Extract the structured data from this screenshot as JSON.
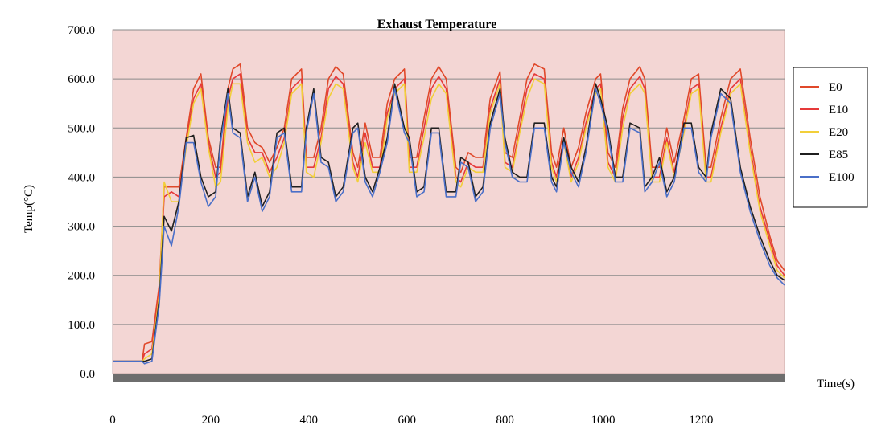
{
  "chart_data": {
    "type": "line",
    "title": "Exhaust Temperature",
    "xlabel": "Time(s)",
    "ylabel": "Temp(°C)",
    "xlim": [
      0,
      1370
    ],
    "ylim": [
      0,
      700
    ],
    "yticks": [
      "0.0",
      "100.0",
      "200.0",
      "300.0",
      "400.0",
      "500.0",
      "600.0",
      "700.0"
    ],
    "xticks": [
      "0",
      "200",
      "400",
      "600",
      "800",
      "1000",
      "1200"
    ],
    "grid": true,
    "legend_position": "right",
    "series": [
      {
        "name": "E0",
        "color": "#e0482a",
        "x": [
          0,
          60,
          65,
          80,
          95,
          105,
          120,
          135,
          150,
          165,
          180,
          195,
          210,
          220,
          235,
          245,
          260,
          275,
          290,
          305,
          320,
          335,
          350,
          365,
          385,
          395,
          410,
          425,
          440,
          455,
          470,
          490,
          500,
          515,
          530,
          545,
          560,
          575,
          595,
          605,
          620,
          635,
          650,
          665,
          680,
          700,
          710,
          725,
          740,
          755,
          770,
          790,
          800,
          815,
          830,
          845,
          860,
          880,
          895,
          905,
          920,
          935,
          950,
          965,
          985,
          995,
          1010,
          1025,
          1040,
          1055,
          1075,
          1085,
          1100,
          1115,
          1130,
          1145,
          1165,
          1180,
          1195,
          1210,
          1220,
          1240,
          1260,
          1280,
          1300,
          1320,
          1340,
          1355,
          1370
        ],
        "y": [
          25,
          25,
          60,
          65,
          180,
          380,
          380,
          380,
          480,
          580,
          610,
          480,
          420,
          420,
          580,
          620,
          630,
          500,
          470,
          460,
          430,
          460,
          500,
          600,
          620,
          440,
          440,
          500,
          600,
          625,
          610,
          450,
          420,
          510,
          440,
          440,
          550,
          600,
          620,
          440,
          440,
          520,
          600,
          625,
          600,
          420,
          410,
          450,
          440,
          440,
          560,
          615,
          450,
          440,
          520,
          600,
          630,
          620,
          450,
          420,
          500,
          420,
          460,
          530,
          600,
          610,
          450,
          420,
          540,
          600,
          625,
          600,
          420,
          420,
          500,
          430,
          520,
          600,
          610,
          420,
          420,
          520,
          600,
          620,
          480,
          360,
          280,
          230,
          210
        ]
      },
      {
        "name": "E10",
        "color": "#e63a3a",
        "x": [
          0,
          60,
          65,
          80,
          95,
          105,
          120,
          135,
          150,
          165,
          180,
          195,
          210,
          220,
          235,
          245,
          260,
          275,
          290,
          305,
          320,
          335,
          350,
          365,
          385,
          395,
          410,
          425,
          440,
          455,
          470,
          490,
          500,
          515,
          530,
          545,
          560,
          575,
          595,
          605,
          620,
          635,
          650,
          665,
          680,
          700,
          710,
          725,
          740,
          755,
          770,
          790,
          800,
          815,
          830,
          845,
          860,
          880,
          895,
          905,
          920,
          935,
          950,
          965,
          985,
          995,
          1010,
          1025,
          1040,
          1055,
          1075,
          1085,
          1100,
          1115,
          1130,
          1145,
          1165,
          1180,
          1195,
          1210,
          1220,
          1240,
          1260,
          1280,
          1300,
          1320,
          1340,
          1355,
          1370
        ],
        "y": [
          25,
          25,
          40,
          50,
          170,
          360,
          370,
          360,
          470,
          560,
          590,
          470,
          400,
          410,
          560,
          600,
          610,
          480,
          450,
          450,
          410,
          440,
          480,
          580,
          600,
          420,
          420,
          480,
          580,
          605,
          590,
          430,
          400,
          490,
          420,
          420,
          530,
          580,
          600,
          420,
          420,
          500,
          580,
          605,
          580,
          400,
          390,
          430,
          420,
          420,
          540,
          600,
          430,
          420,
          500,
          580,
          610,
          600,
          430,
          400,
          480,
          400,
          440,
          510,
          580,
          590,
          430,
          400,
          520,
          580,
          605,
          580,
          400,
          400,
          480,
          410,
          500,
          580,
          590,
          400,
          400,
          500,
          580,
          600,
          460,
          340,
          270,
          220,
          200
        ]
      },
      {
        "name": "E20",
        "color": "#f2cf3a",
        "x": [
          0,
          60,
          65,
          80,
          95,
          105,
          120,
          135,
          150,
          165,
          180,
          195,
          210,
          220,
          235,
          245,
          260,
          275,
          290,
          305,
          320,
          335,
          350,
          365,
          385,
          395,
          410,
          425,
          440,
          455,
          470,
          490,
          500,
          515,
          530,
          545,
          560,
          575,
          595,
          605,
          620,
          635,
          650,
          665,
          680,
          700,
          710,
          725,
          740,
          755,
          770,
          790,
          800,
          815,
          830,
          845,
          860,
          880,
          895,
          905,
          920,
          935,
          950,
          965,
          985,
          995,
          1010,
          1025,
          1040,
          1055,
          1075,
          1085,
          1100,
          1115,
          1130,
          1145,
          1165,
          1180,
          1195,
          1210,
          1220,
          1240,
          1260,
          1280,
          1300,
          1320,
          1340,
          1355,
          1370
        ],
        "y": [
          25,
          25,
          30,
          40,
          160,
          390,
          350,
          350,
          460,
          550,
          580,
          460,
          380,
          390,
          540,
          590,
          590,
          470,
          430,
          440,
          400,
          420,
          470,
          570,
          590,
          410,
          400,
          470,
          560,
          590,
          580,
          420,
          390,
          470,
          410,
          410,
          520,
          570,
          590,
          410,
          410,
          480,
          560,
          590,
          570,
          390,
          380,
          420,
          410,
          410,
          530,
          590,
          420,
          410,
          490,
          560,
          600,
          590,
          420,
          390,
          470,
          390,
          430,
          500,
          570,
          580,
          420,
          390,
          500,
          570,
          590,
          570,
          390,
          390,
          470,
          400,
          490,
          570,
          580,
          390,
          390,
          490,
          570,
          590,
          450,
          330,
          260,
          210,
          195
        ]
      },
      {
        "name": "E85",
        "color": "#1f1f1f",
        "x": [
          0,
          60,
          65,
          80,
          95,
          105,
          120,
          135,
          150,
          165,
          180,
          195,
          210,
          220,
          235,
          245,
          260,
          275,
          290,
          305,
          320,
          335,
          350,
          365,
          385,
          395,
          410,
          425,
          440,
          455,
          470,
          490,
          500,
          515,
          530,
          545,
          560,
          575,
          595,
          605,
          620,
          635,
          650,
          665,
          680,
          700,
          710,
          725,
          740,
          755,
          770,
          790,
          800,
          815,
          830,
          845,
          860,
          880,
          895,
          905,
          920,
          935,
          950,
          965,
          985,
          995,
          1010,
          1025,
          1040,
          1055,
          1075,
          1085,
          1100,
          1115,
          1130,
          1145,
          1165,
          1180,
          1195,
          1210,
          1220,
          1240,
          1260,
          1280,
          1300,
          1320,
          1340,
          1355,
          1370
        ],
        "y": [
          25,
          25,
          25,
          30,
          150,
          320,
          290,
          350,
          480,
          485,
          400,
          360,
          370,
          480,
          580,
          500,
          490,
          360,
          410,
          340,
          370,
          490,
          500,
          380,
          380,
          500,
          580,
          440,
          430,
          360,
          380,
          500,
          510,
          400,
          370,
          420,
          480,
          590,
          500,
          480,
          370,
          380,
          500,
          500,
          370,
          370,
          440,
          430,
          360,
          380,
          510,
          580,
          480,
          410,
          400,
          400,
          510,
          510,
          400,
          380,
          480,
          420,
          390,
          460,
          590,
          560,
          500,
          400,
          400,
          510,
          500,
          380,
          400,
          440,
          370,
          400,
          510,
          510,
          420,
          400,
          490,
          580,
          560,
          420,
          340,
          280,
          230,
          200,
          190
        ]
      },
      {
        "name": "E100",
        "color": "#4a6fc8",
        "x": [
          0,
          60,
          65,
          80,
          95,
          105,
          120,
          135,
          150,
          165,
          180,
          195,
          210,
          220,
          235,
          245,
          260,
          275,
          290,
          305,
          320,
          335,
          350,
          365,
          385,
          395,
          410,
          425,
          440,
          455,
          470,
          490,
          500,
          515,
          530,
          545,
          560,
          575,
          595,
          605,
          620,
          635,
          650,
          665,
          680,
          700,
          710,
          725,
          740,
          755,
          770,
          790,
          800,
          815,
          830,
          845,
          860,
          880,
          895,
          905,
          920,
          935,
          950,
          965,
          985,
          995,
          1010,
          1025,
          1040,
          1055,
          1075,
          1085,
          1100,
          1115,
          1130,
          1145,
          1165,
          1180,
          1195,
          1210,
          1220,
          1240,
          1260,
          1280,
          1300,
          1320,
          1340,
          1355,
          1370
        ],
        "y": [
          25,
          25,
          20,
          25,
          140,
          300,
          260,
          340,
          470,
          470,
          390,
          340,
          360,
          470,
          570,
          490,
          480,
          350,
          400,
          330,
          360,
          480,
          490,
          370,
          370,
          490,
          570,
          430,
          420,
          350,
          370,
          490,
          500,
          390,
          360,
          410,
          470,
          580,
          490,
          470,
          360,
          370,
          490,
          490,
          360,
          360,
          430,
          420,
          350,
          370,
          500,
          570,
          470,
          400,
          390,
          390,
          500,
          500,
          390,
          370,
          470,
          410,
          380,
          450,
          580,
          550,
          490,
          390,
          390,
          500,
          490,
          370,
          390,
          430,
          360,
          390,
          500,
          500,
          410,
          390,
          480,
          570,
          550,
          410,
          330,
          270,
          220,
          195,
          180
        ]
      }
    ]
  }
}
